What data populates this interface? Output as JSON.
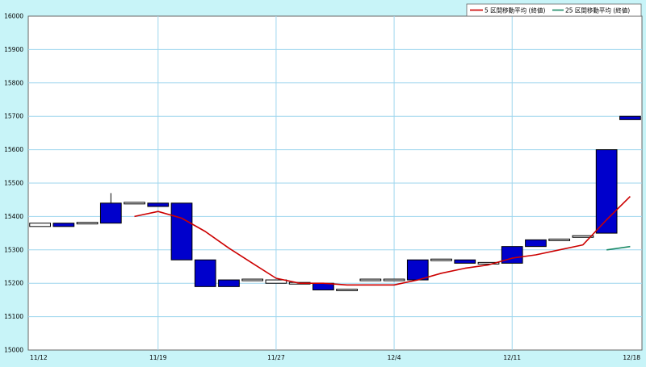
{
  "chart_data": {
    "type": "candlestick",
    "ylim": [
      15000,
      16000
    ],
    "yticks": [
      15000,
      15100,
      15200,
      15300,
      15400,
      15500,
      15600,
      15700,
      15800,
      15900,
      16000
    ],
    "ytick_labels": [
      "15000",
      "15100",
      "15200",
      "15300",
      "15400",
      "15500",
      "15600",
      "15700",
      "15800",
      "15900",
      "16000"
    ],
    "xtick_labels": [
      {
        "label": "11/12",
        "index": 0
      },
      {
        "label": "11/19",
        "index": 5
      },
      {
        "label": "11/27",
        "index": 10
      },
      {
        "label": "12/4",
        "index": 15
      },
      {
        "label": "12/11",
        "index": 20
      },
      {
        "label": "12/18",
        "index": 25
      }
    ],
    "grid": true,
    "legend_position": "top-right",
    "legend": [
      {
        "label": "5 区間移動平均 (終値)",
        "color": "#cc0000"
      },
      {
        "label": "25 区間移動平均 (終値)",
        "color": "#1a8a66"
      }
    ],
    "colors": {
      "up": "#ffffff",
      "down": "#0000cc",
      "ma5": "#cc0000",
      "ma25": "#1a8a66",
      "plot_bg": "#ffffff",
      "frame_bg": "#c8f4f8",
      "grid": "#9ed6ee"
    },
    "candles": [
      {
        "o": 15370,
        "h": 15380,
        "l": 15370,
        "c": 15380
      },
      {
        "o": 15380,
        "h": 15380,
        "l": 15370,
        "c": 15370
      },
      {
        "o": 15380,
        "h": 15380,
        "l": 15380,
        "c": 15380
      },
      {
        "o": 15440,
        "h": 15470,
        "l": 15380,
        "c": 15380
      },
      {
        "o": 15440,
        "h": 15440,
        "l": 15440,
        "c": 15440
      },
      {
        "o": 15440,
        "h": 15440,
        "l": 15430,
        "c": 15430
      },
      {
        "o": 15440,
        "h": 15440,
        "l": 15270,
        "c": 15270
      },
      {
        "o": 15270,
        "h": 15270,
        "l": 15190,
        "c": 15190
      },
      {
        "o": 15210,
        "h": 15210,
        "l": 15190,
        "c": 15190
      },
      {
        "o": 15210,
        "h": 15210,
        "l": 15210,
        "c": 15210
      },
      {
        "o": 15200,
        "h": 15200,
        "l": 15210,
        "c": 15210
      },
      {
        "o": 15200,
        "h": 15200,
        "l": 15200,
        "c": 15200
      },
      {
        "o": 15200,
        "h": 15200,
        "l": 15180,
        "c": 15180
      },
      {
        "o": 15180,
        "h": 15180,
        "l": 15180,
        "c": 15180
      },
      {
        "o": 15210,
        "h": 15210,
        "l": 15210,
        "c": 15210
      },
      {
        "o": 15210,
        "h": 15210,
        "l": 15210,
        "c": 15210
      },
      {
        "o": 15270,
        "h": 15270,
        "l": 15210,
        "c": 15210
      },
      {
        "o": 15270,
        "h": 15270,
        "l": 15270,
        "c": 15270
      },
      {
        "o": 15270,
        "h": 15270,
        "l": 15260,
        "c": 15260
      },
      {
        "o": 15260,
        "h": 15260,
        "l": 15260,
        "c": 15260
      },
      {
        "o": 15310,
        "h": 15310,
        "l": 15260,
        "c": 15260
      },
      {
        "o": 15330,
        "h": 15330,
        "l": 15310,
        "c": 15310
      },
      {
        "o": 15330,
        "h": 15330,
        "l": 15330,
        "c": 15330
      },
      {
        "o": 15340,
        "h": 15340,
        "l": 15340,
        "c": 15340
      },
      {
        "o": 15600,
        "h": 15600,
        "l": 15350,
        "c": 15350
      },
      {
        "o": 15700,
        "h": 15700,
        "l": 15690,
        "c": 15690
      }
    ],
    "ma5": [
      {
        "i": 4.5,
        "v": 15400
      },
      {
        "i": 5.5,
        "v": 15415
      },
      {
        "i": 6.5,
        "v": 15395
      },
      {
        "i": 7.5,
        "v": 15355
      },
      {
        "i": 8.5,
        "v": 15305
      },
      {
        "i": 9.5,
        "v": 15260
      },
      {
        "i": 10.5,
        "v": 15215
      },
      {
        "i": 11.5,
        "v": 15200
      },
      {
        "i": 12.5,
        "v": 15200
      },
      {
        "i": 13.5,
        "v": 15195
      },
      {
        "i": 14.5,
        "v": 15195
      },
      {
        "i": 15.5,
        "v": 15195
      },
      {
        "i": 16.5,
        "v": 15210
      },
      {
        "i": 17.5,
        "v": 15230
      },
      {
        "i": 18.5,
        "v": 15245
      },
      {
        "i": 19.5,
        "v": 15255
      },
      {
        "i": 20.5,
        "v": 15275
      },
      {
        "i": 21.5,
        "v": 15285
      },
      {
        "i": 22.5,
        "v": 15300
      },
      {
        "i": 23.5,
        "v": 15315
      },
      {
        "i": 24.5,
        "v": 15390
      },
      {
        "i": 25.5,
        "v": 15460
      }
    ],
    "ma25": [
      {
        "i": 24.5,
        "v": 15300
      },
      {
        "i": 25.5,
        "v": 15310
      }
    ]
  }
}
